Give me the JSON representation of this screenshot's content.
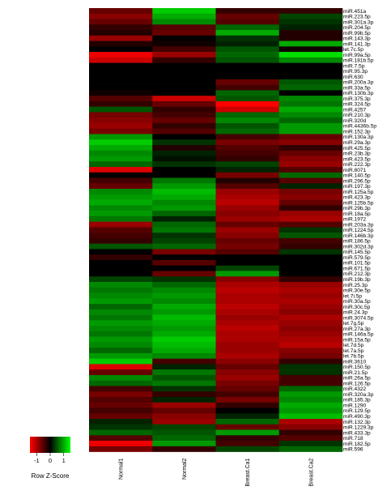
{
  "chart_data": {
    "type": "heatmap",
    "title": "",
    "columns": [
      "Normal1",
      "Normal2",
      "Breast.Ca1",
      "Breast.Ca2"
    ],
    "rows": [
      "miR.451a",
      "miR.223.5p",
      "miR.301a.3p",
      "miR.204.5p",
      "miR.99b.5p",
      "miR.143.3p",
      "miR.141.3p",
      "let.7c.5p",
      "miR.99a.5p",
      "miR.181b.5p",
      "miR.7.5p",
      "miR.95.3p",
      "miR.630",
      "miR.200a.3p",
      "miR.33a.5p",
      "miR.130b.3p",
      "miR.375.3p",
      "miR.324.5p",
      "miR.4257",
      "miR.210.3p",
      "miR.320d",
      "miR.4436b.5p",
      "miR.152.3p",
      "miR.130a.3p",
      "miR.29a.3p",
      "miR.425.5p",
      "miR.23b.3p",
      "miR.423.5p",
      "miR.222.3p",
      "miR.8071",
      "miR.140.5p",
      "miR.296.5p",
      "miR.197.3p",
      "miR.125a.5p",
      "miR.423.3p",
      "miR.125b.5p",
      "miR.29b.3p",
      "miR.18a.5p",
      "miR.1972",
      "miR.203a.3p",
      "miR.1224.5p",
      "miR.146b.3p",
      "miR.186.5p",
      "miR.302d.3p",
      "miR.145.5p",
      "miR.579.5p",
      "miR.101.5p",
      "miR.671.5p",
      "miR.212.3p",
      "miR.19b.3p",
      "miR.25.3p",
      "miR.30e.5p",
      "let.7i.5p",
      "miR.30a.5p",
      "miR.30c.5p",
      "miR.24.3p",
      "miR.3074.5p",
      "let.7g.5p",
      "miR.27a.3p",
      "miR.146a.5p",
      "miR.15a.5p",
      "let.7d.5p",
      "let.7a.5p",
      "let.7b.5p",
      "miR.3610",
      "miR.150.5p",
      "miR.21.5p",
      "miR.26a.5p",
      "miR.126.5p",
      "miR.4322",
      "miR.320a.3p",
      "miR.185.3p",
      "miR.1290",
      "miR.129.5p",
      "miR.490.3p",
      "miR.132.3p",
      "miR.1229.3p",
      "miR.433.3p",
      "miR.718",
      "miR.182.5p",
      "miR.596"
    ],
    "values": [
      [
        -0.6,
        1.2,
        -0.3,
        -0.3
      ],
      [
        -0.8,
        1.0,
        -0.6,
        0.4
      ],
      [
        -0.6,
        0.8,
        -0.5,
        0.3
      ],
      [
        -0.3,
        -0.5,
        0.6,
        0.2
      ],
      [
        -0.2,
        -0.6,
        1.0,
        -0.2
      ],
      [
        -0.9,
        0.0,
        0.3,
        -0.2
      ],
      [
        -0.2,
        -0.1,
        0.2,
        1.0
      ],
      [
        0.0,
        -0.4,
        0.5,
        -0.1
      ],
      [
        -1.4,
        -0.9,
        0.6,
        1.3
      ],
      [
        -1.2,
        -0.3,
        0.5,
        0.8
      ],
      [
        0.0,
        0.0,
        0.0,
        0.0
      ],
      [
        0.0,
        0.0,
        0.0,
        0.0
      ],
      [
        0.0,
        0.0,
        0.0,
        0.0
      ],
      [
        0.0,
        0.0,
        -0.6,
        0.5
      ],
      [
        0.0,
        0.0,
        -0.4,
        0.6
      ],
      [
        -0.1,
        0.0,
        0.6,
        0.0
      ],
      [
        -0.5,
        -1.2,
        0.5,
        0.8
      ],
      [
        -0.3,
        -0.6,
        -1.5,
        0.7
      ],
      [
        0.5,
        -0.3,
        -1.2,
        1.0
      ],
      [
        -0.7,
        -0.4,
        0.6,
        0.8
      ],
      [
        -0.8,
        -0.6,
        0.8,
        0.6
      ],
      [
        -0.9,
        -0.3,
        0.5,
        0.9
      ],
      [
        -0.7,
        -0.5,
        0.6,
        0.9
      ],
      [
        0.9,
        0.0,
        -0.4,
        -0.6
      ],
      [
        1.2,
        0.3,
        -0.7,
        -0.8
      ],
      [
        1.0,
        -0.2,
        -0.5,
        -0.3
      ],
      [
        0.8,
        0.2,
        -0.4,
        -0.6
      ],
      [
        0.9,
        0.1,
        -0.3,
        -0.8
      ],
      [
        0.6,
        0.3,
        0.4,
        -0.9
      ],
      [
        -1.3,
        0.0,
        0.2,
        -0.5
      ],
      [
        0.0,
        0.0,
        -0.7,
        0.6
      ],
      [
        -0.4,
        0.7,
        -0.2,
        -0.5
      ],
      [
        -0.6,
        0.9,
        -0.5,
        0.2
      ],
      [
        0.8,
        1.1,
        -0.9,
        -0.7
      ],
      [
        0.9,
        1.0,
        -1.0,
        -0.8
      ],
      [
        1.0,
        0.8,
        -1.1,
        -0.6
      ],
      [
        0.8,
        0.9,
        -0.9,
        -0.3
      ],
      [
        0.9,
        0.6,
        -0.8,
        -0.9
      ],
      [
        0.7,
        0.2,
        -0.9,
        -1.0
      ],
      [
        -0.9,
        0.6,
        -0.6,
        -0.5
      ],
      [
        -0.5,
        0.7,
        -0.9,
        0.3
      ],
      [
        -0.4,
        0.3,
        -0.8,
        0.5
      ],
      [
        -0.3,
        0.4,
        -0.6,
        -0.4
      ],
      [
        0.5,
        0.6,
        -0.7,
        -0.3
      ],
      [
        0.0,
        -0.7,
        -0.5,
        0.3
      ],
      [
        -0.3,
        0.0,
        0.0,
        0.0
      ],
      [
        0.0,
        -0.5,
        0.0,
        0.0
      ],
      [
        0.0,
        0.0,
        0.4,
        0.0
      ],
      [
        0.0,
        -0.6,
        0.9,
        0.0
      ],
      [
        0.4,
        0.3,
        -0.8,
        -0.3
      ],
      [
        0.8,
        0.6,
        -1.0,
        -0.9
      ],
      [
        0.7,
        0.8,
        -1.1,
        -1.0
      ],
      [
        0.8,
        0.9,
        -1.0,
        -0.9
      ],
      [
        0.9,
        0.8,
        -1.0,
        -1.0
      ],
      [
        0.6,
        1.0,
        -1.1,
        -0.9
      ],
      [
        0.8,
        0.9,
        -1.0,
        -0.8
      ],
      [
        0.7,
        1.1,
        -0.9,
        -1.0
      ],
      [
        0.9,
        1.0,
        -1.0,
        -0.9
      ],
      [
        0.8,
        0.9,
        -1.1,
        -0.8
      ],
      [
        0.7,
        1.0,
        -1.0,
        -0.9
      ],
      [
        0.9,
        1.2,
        -1.0,
        -1.0
      ],
      [
        0.8,
        1.1,
        -0.9,
        -1.1
      ],
      [
        0.6,
        1.0,
        -0.9,
        -0.8
      ],
      [
        0.9,
        0.8,
        -1.0,
        -0.7
      ],
      [
        1.2,
        -0.4,
        -0.8,
        -0.3
      ],
      [
        -1.3,
        0.2,
        -0.6,
        0.3
      ],
      [
        -0.6,
        0.7,
        -0.8,
        0.3
      ],
      [
        0.8,
        0.5,
        -0.9,
        -0.4
      ],
      [
        0.6,
        0.7,
        -0.7,
        -0.4
      ],
      [
        -0.4,
        0.3,
        -0.6,
        0.6
      ],
      [
        -0.7,
        -0.3,
        -0.4,
        0.9
      ],
      [
        -0.5,
        0.2,
        -0.7,
        0.8
      ],
      [
        -0.6,
        -0.9,
        -0.3,
        1.0
      ],
      [
        -0.4,
        -0.6,
        0.0,
        0.9
      ],
      [
        -0.6,
        -0.8,
        0.2,
        1.1
      ],
      [
        0.2,
        -0.9,
        0.6,
        -1.0
      ],
      [
        0.3,
        0.4,
        -0.6,
        -0.8
      ],
      [
        0.6,
        0.5,
        0.9,
        -0.3
      ],
      [
        -0.5,
        0.6,
        -0.3,
        -0.5
      ],
      [
        -1.4,
        0.9,
        -0.4,
        0.3
      ],
      [
        -0.7,
        -0.3,
        0.4,
        0.6
      ]
    ],
    "color_scale": {
      "low": "#ff0000",
      "mid": "#000000",
      "high": "#00ff00",
      "min": -1.5,
      "max": 1.5
    },
    "legend": {
      "title": "Row Z-Score",
      "ticks": [
        "-1",
        "0",
        "1"
      ],
      "tick_values": [
        -1,
        0,
        1
      ],
      "placement": "bottom-left"
    }
  }
}
